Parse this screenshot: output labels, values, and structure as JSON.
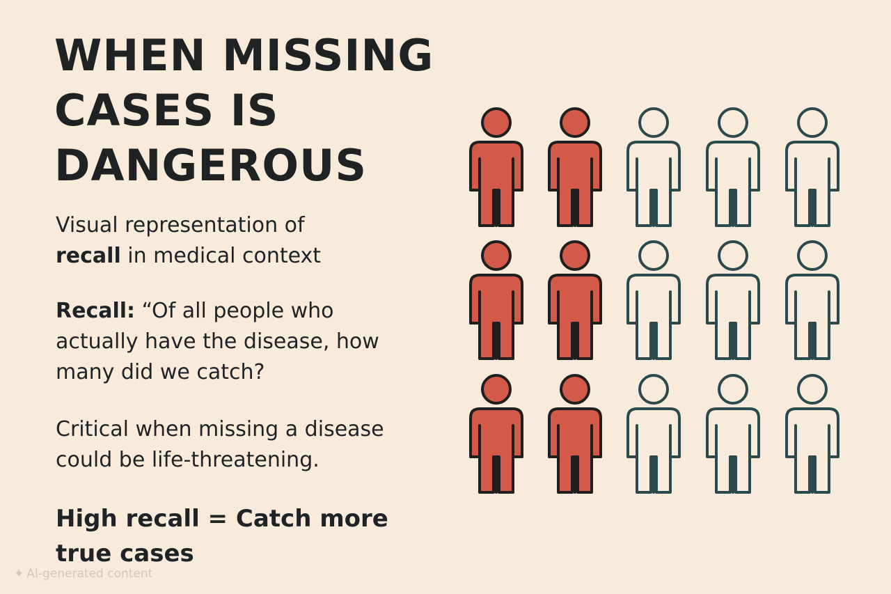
{
  "title_lines": [
    "WHEN MISSING",
    "CASES IS",
    "DANGEROUS"
  ],
  "subtitle": {
    "line1": "Visual representation of",
    "bold": "recall",
    "line2_rest": " in medical context"
  },
  "definition": {
    "label": "Recall:",
    "line1_rest": " “Of all people who",
    "line2": "actually have the disease, how",
    "line3": "many did we catch?"
  },
  "critical_note": {
    "line1": "Critical when missing a disease",
    "line2": "could be life-threatening."
  },
  "takeaway": {
    "line1": "High recall = Catch more",
    "line2": "true cases"
  },
  "pictogram": {
    "rows": 3,
    "columns": 5,
    "highlighted_per_row": 2,
    "highlight_color": "#d35a49",
    "outline_color": "#2b4a4d",
    "stroke_color": "#1f1f1f"
  },
  "watermark": {
    "icon": "sparkle-icon",
    "text": "AI-generated content"
  }
}
